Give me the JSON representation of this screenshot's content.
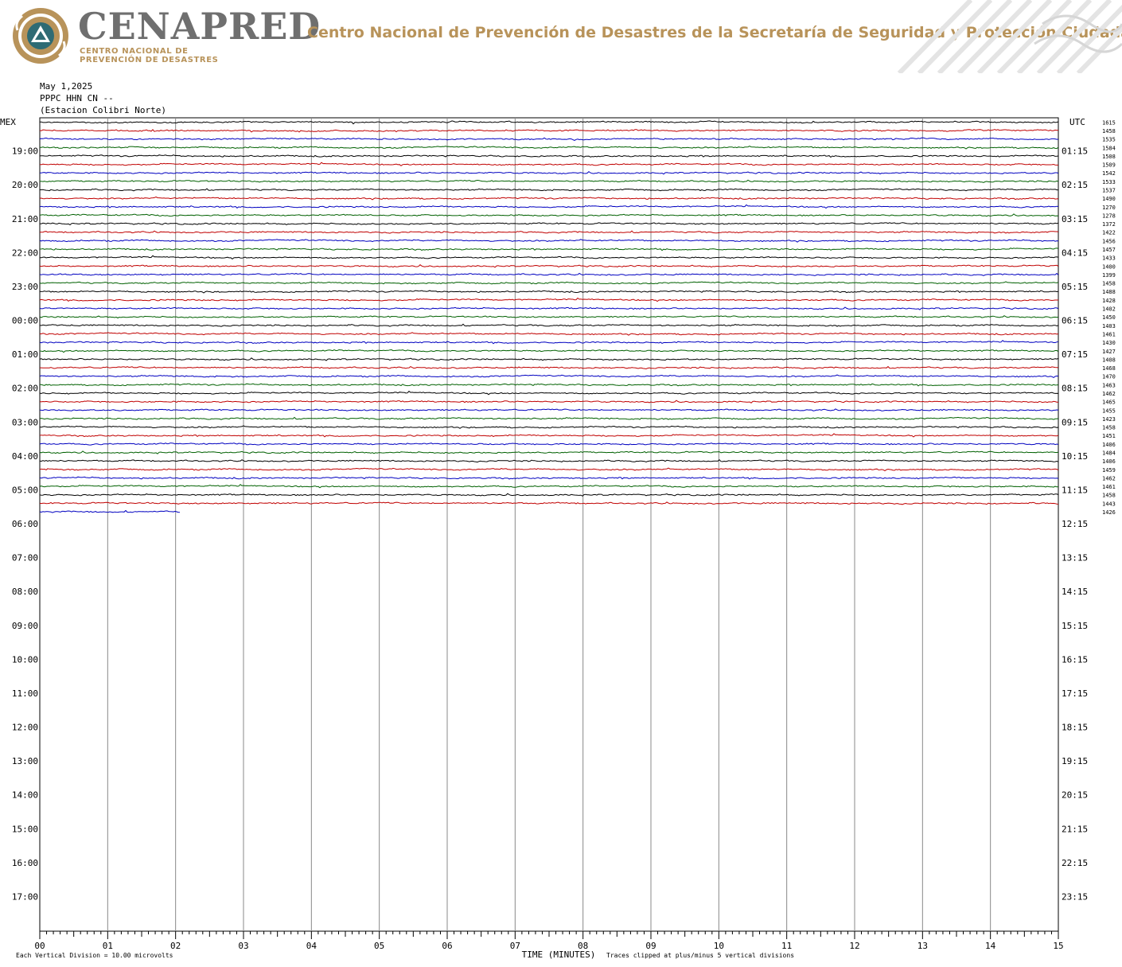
{
  "header": {
    "brand": "CENAPRED",
    "brand_sub_line1": "CENTRO NACIONAL DE",
    "brand_sub_line2": "PREVENCIÓN DE DESASTRES",
    "org_title": "Centro Nacional de Prevención de Desastres de la Secretaría de Seguridad y Protección Ciudadana",
    "brand_gold": "#b8935a",
    "brand_gray": "#6f6f6f"
  },
  "meta": {
    "date": "May 1,2025",
    "channel": "PPPC HHN CN --",
    "station": "(Estacion Colibri Norte)"
  },
  "chart_data": {
    "type": "line",
    "title": "",
    "left_axis_title": "MEX",
    "right_axis_title": "UTC",
    "xlabel": "TIME (MINUTES)",
    "x_ticks": [
      "00",
      "01",
      "02",
      "03",
      "04",
      "05",
      "06",
      "07",
      "08",
      "09",
      "10",
      "11",
      "12",
      "13",
      "14",
      "15"
    ],
    "xlim": [
      0,
      15
    ],
    "left_hour_labels": [
      "19:00",
      "20:00",
      "21:00",
      "22:00",
      "23:00",
      "00:00",
      "01:00",
      "02:00",
      "03:00",
      "04:00",
      "05:00",
      "06:00",
      "07:00",
      "08:00",
      "09:00",
      "10:00",
      "11:00",
      "12:00",
      "13:00",
      "14:00",
      "15:00",
      "16:00",
      "17:00"
    ],
    "right_hour_labels": [
      "01:15",
      "02:15",
      "03:15",
      "04:15",
      "05:15",
      "06:15",
      "07:15",
      "08:15",
      "09:15",
      "10:15",
      "11:15",
      "12:15",
      "13:15",
      "14:15",
      "15:15",
      "16:15",
      "17:15",
      "18:15",
      "19:15",
      "20:15",
      "21:15",
      "22:15",
      "23:15"
    ],
    "traces_per_hour": 4,
    "total_rows": 96,
    "recorded_rows": 47,
    "last_row_minutes": 2.07,
    "trace_colors": [
      "#000000",
      "#c00000",
      "#0000c0",
      "#006000"
    ],
    "row_values": [
      "1615",
      "1458",
      "1535",
      "1584",
      "1508",
      "1509",
      "1542",
      "1533",
      "1537",
      "1490",
      "1270",
      "1278",
      "1372",
      "1422",
      "1456",
      "1457",
      "1433",
      "1400",
      "1399",
      "1458",
      "1488",
      "1428",
      "1402",
      "1450",
      "1403",
      "1461",
      "1430",
      "1427",
      "1408",
      "1468",
      "1470",
      "1463",
      "1462",
      "1465",
      "1455",
      "1423",
      "1458",
      "1451",
      "1406",
      "1484",
      "1406",
      "1459",
      "1462",
      "1461",
      "1458",
      "1443",
      "1426"
    ],
    "footnote_left": "Each Vertical Division =   10.00 microvolts",
    "footnote_right": "Traces clipped at plus/minus 5 vertical divisions"
  }
}
